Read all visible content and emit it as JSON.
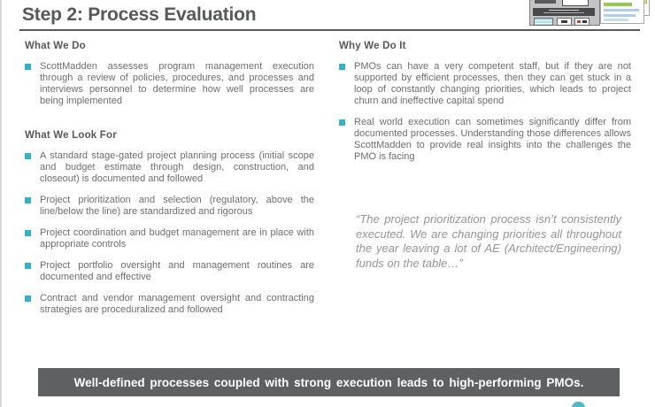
{
  "slide": {
    "title": "Step 2: Process Evaluation",
    "banner_text": "Well-defined processes coupled with strong execution leads to high-performing PMOs."
  },
  "left_column": {
    "what_we_do": {
      "heading": "What We Do",
      "bullets": [
        "ScottMadden assesses program management execution through a review of policies, procedures, and processes and interviews personnel to determine how well processes are being implemented"
      ]
    },
    "what_we_look_for": {
      "heading": "What We Look For",
      "bullets": [
        "A standard stage-gated project planning process (initial scope and budget estimate through design, construction, and closeout) is documented and followed",
        "Project prioritization and selection (regulatory, above the line/below the line) are standardized and rigorous",
        "Project coordination and budget management are in place with appropriate controls",
        "Project portfolio oversight and management routines are documented and effective",
        "Contract and vendor management oversight and contracting strategies are proceduralized and followed"
      ]
    }
  },
  "right_column": {
    "why_we_do_it": {
      "heading": "Why We Do It",
      "bullets": [
        "PMOs can have a very competent staff, but if they are not supported by efficient processes, then they can get stuck in a loop of constantly changing priorities, which leads to project churn and ineffective capital spend",
        "Real world execution can sometimes significantly differ from documented processes. Understanding those differences allows ScottMadden to provide real insights into the challenges the PMO is facing"
      ]
    },
    "quote": "“The project prioritization process isn’t consistently executed. We are changing priorities all throughout the year leaving a lot of AE (Architect/Engineering) funds on the table…”"
  },
  "colors": {
    "accent_teal": "#35b0c6",
    "heading_gray": "#57585a",
    "body_gray": "#6d6e71",
    "quote_gray": "#939598",
    "banner_bg": "#5f6062",
    "banner_text": "#ffffff"
  },
  "icons": {
    "bullet-square-icon": "■",
    "slide-thumbnail-icon": "css-blocks",
    "document-stack-icon": "css-blocks",
    "logo-fragment-icon": "css-shape"
  }
}
